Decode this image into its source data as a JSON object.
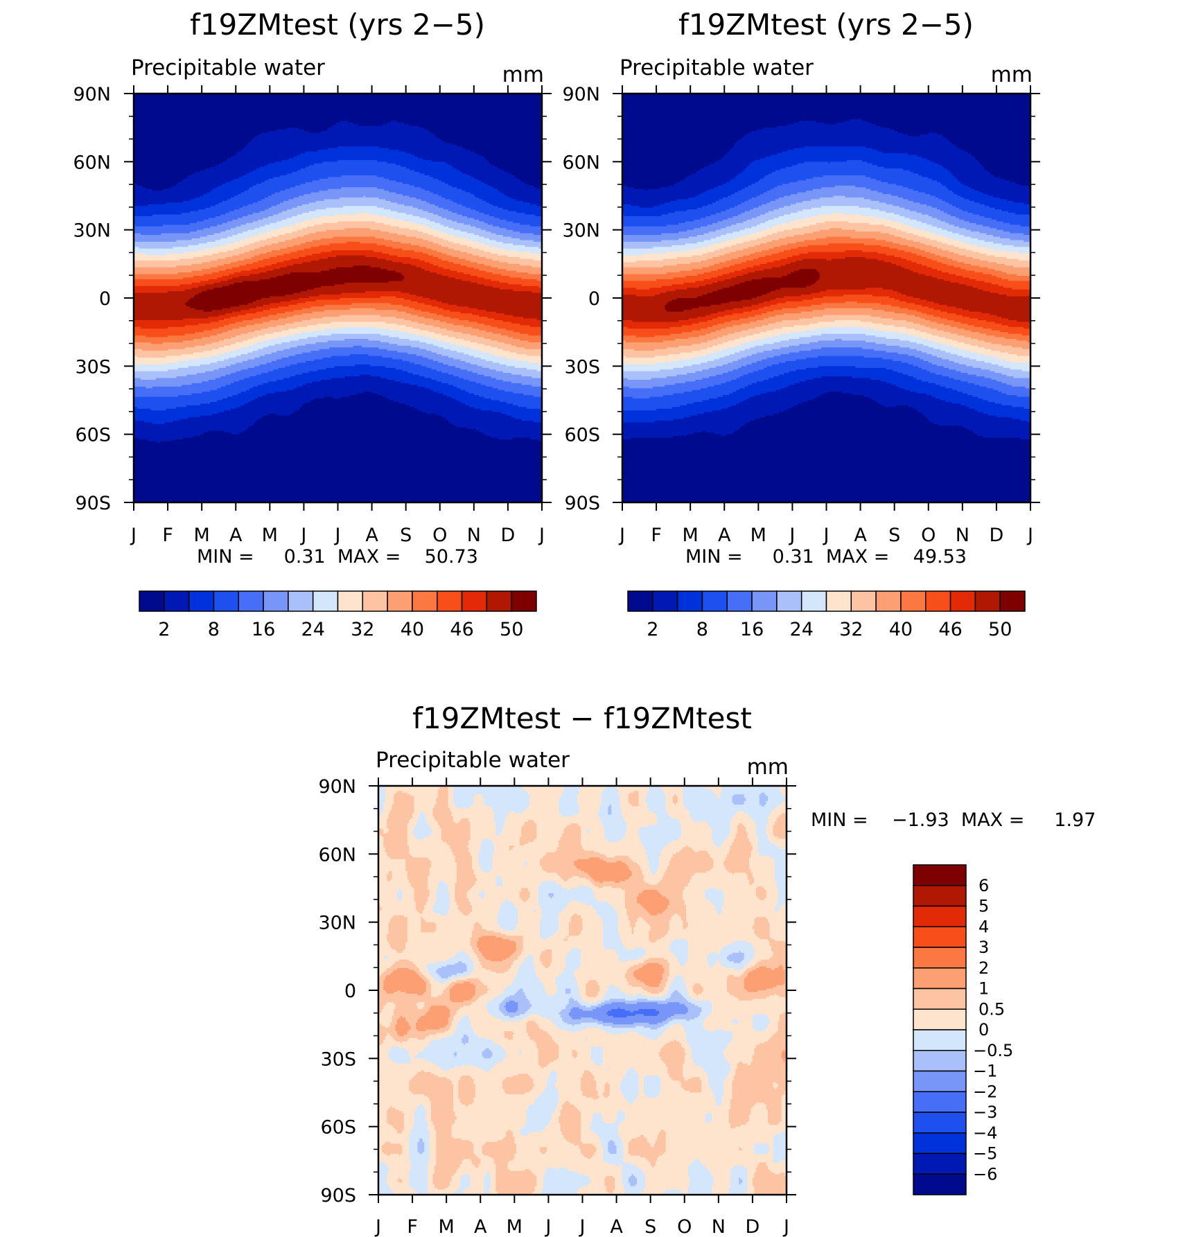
{
  "chart_data": [
    {
      "type": "heatmap",
      "title": "f19ZMtest (yrs 2−5)",
      "left_label": "Precipitable water",
      "units": "mm",
      "x_ticks": [
        "J",
        "F",
        "M",
        "A",
        "M",
        "J",
        "J",
        "A",
        "S",
        "O",
        "N",
        "D",
        "J"
      ],
      "y_ticks": [
        "90N",
        "60N",
        "30N",
        "0",
        "30S",
        "60S",
        "90S"
      ],
      "xlim": [
        0,
        12
      ],
      "ylim": [
        -90,
        90
      ],
      "min_max_text": "MIN =     0.31  MAX =    50.73",
      "min": 0.31,
      "max": 50.73,
      "contour_levels": [
        2,
        5,
        8,
        12,
        16,
        20,
        24,
        28,
        32,
        36,
        40,
        43,
        46,
        48,
        50
      ],
      "colorbar_labels": [
        "2",
        "8",
        "16",
        "24",
        "32",
        "40",
        "46",
        "50"
      ],
      "colorbar_label_positions": [
        1,
        3,
        5,
        7,
        9,
        11,
        13,
        15
      ],
      "colors": [
        "#000a8c",
        "#0018b4",
        "#0032dc",
        "#1e50f0",
        "#466ef6",
        "#7896f8",
        "#aac0fa",
        "#d4e6fb",
        "#fee4cc",
        "#fdc4a4",
        "#fca074",
        "#fb7842",
        "#f84e1a",
        "#e22a06",
        "#b01804",
        "#7e0000"
      ],
      "peak": {
        "month": 4.3,
        "lat": 7,
        "value": 50.7
      }
    },
    {
      "type": "heatmap",
      "title": "f19ZMtest (yrs 2−5)",
      "left_label": "Precipitable water",
      "units": "mm",
      "x_ticks": [
        "J",
        "F",
        "M",
        "A",
        "M",
        "J",
        "J",
        "A",
        "S",
        "O",
        "N",
        "D",
        "J"
      ],
      "y_ticks": [
        "90N",
        "60N",
        "30N",
        "0",
        "30S",
        "60S",
        "90S"
      ],
      "xlim": [
        0,
        12
      ],
      "ylim": [
        -90,
        90
      ],
      "min_max_text": "MIN =     0.31  MAX =    49.53",
      "min": 0.31,
      "max": 49.53,
      "contour_levels": [
        2,
        5,
        8,
        12,
        16,
        20,
        24,
        28,
        32,
        36,
        40,
        43,
        46,
        48,
        50
      ],
      "colorbar_labels": [
        "2",
        "8",
        "16",
        "24",
        "32",
        "40",
        "46",
        "50"
      ],
      "colorbar_label_positions": [
        1,
        3,
        5,
        7,
        9,
        11,
        13,
        15
      ],
      "colors": [
        "#000a8c",
        "#0018b4",
        "#0032dc",
        "#1e50f0",
        "#466ef6",
        "#7896f8",
        "#aac0fa",
        "#d4e6fb",
        "#fee4cc",
        "#fdc4a4",
        "#fca074",
        "#fb7842",
        "#f84e1a",
        "#e22a06",
        "#b01804",
        "#7e0000"
      ],
      "peak": {
        "month": 4.3,
        "lat": 7,
        "value": 49.5
      }
    },
    {
      "type": "heatmap",
      "title": "f19ZMtest − f19ZMtest",
      "left_label": "Precipitable water",
      "units": "mm",
      "x_ticks": [
        "J",
        "F",
        "M",
        "A",
        "M",
        "J",
        "J",
        "A",
        "S",
        "O",
        "N",
        "D",
        "J"
      ],
      "y_ticks": [
        "90N",
        "60N",
        "30N",
        "0",
        "30S",
        "60S",
        "90S"
      ],
      "xlim": [
        0,
        12
      ],
      "ylim": [
        -90,
        90
      ],
      "min_max_text": "MIN =    −1.93  MAX =     1.97",
      "min": -1.93,
      "max": 1.97,
      "contour_levels": [
        -6,
        -5,
        -4,
        -3,
        -2,
        -1,
        -0.5,
        0,
        0.5,
        1,
        2,
        3,
        4,
        5,
        6
      ],
      "colorbar_labels": [
        "6",
        "5",
        "4",
        "3",
        "2",
        "1",
        "0.5",
        "0",
        "−0.5",
        "−1",
        "−2",
        "−3",
        "−4",
        "−5",
        "−6"
      ],
      "colors": [
        "#000a8c",
        "#0018b4",
        "#0032dc",
        "#1e50f0",
        "#466ef6",
        "#7896f8",
        "#aac0fa",
        "#d4e6fb",
        "#fee4cc",
        "#fdc4a4",
        "#fca074",
        "#fb7842",
        "#f84e1a",
        "#e22a06",
        "#b01804",
        "#7e0000"
      ],
      "features": [
        {
          "month": 2.1,
          "lat": 8,
          "value": -1.3
        },
        {
          "month": 4.0,
          "lat": -8,
          "value": -1.5
        },
        {
          "month": 6.6,
          "lat": -10,
          "value": -1.9
        },
        {
          "month": 8.2,
          "lat": -9,
          "value": -1.7
        },
        {
          "month": 0.8,
          "lat": 4,
          "value": 1.6
        },
        {
          "month": 2.6,
          "lat": 0,
          "value": 1.3
        },
        {
          "month": 8.0,
          "lat": 8,
          "value": 1.7
        },
        {
          "month": 11.3,
          "lat": 5,
          "value": 1.5
        },
        {
          "month": 6.8,
          "lat": 52,
          "value": 1.8
        },
        {
          "month": 7.9,
          "lat": 40,
          "value": 1.2
        },
        {
          "month": 3.7,
          "lat": 20,
          "value": 1.4
        },
        {
          "month": 1.6,
          "lat": -12,
          "value": 1.2
        },
        {
          "month": 1.0,
          "lat": -18,
          "value": 1.0
        }
      ]
    }
  ]
}
